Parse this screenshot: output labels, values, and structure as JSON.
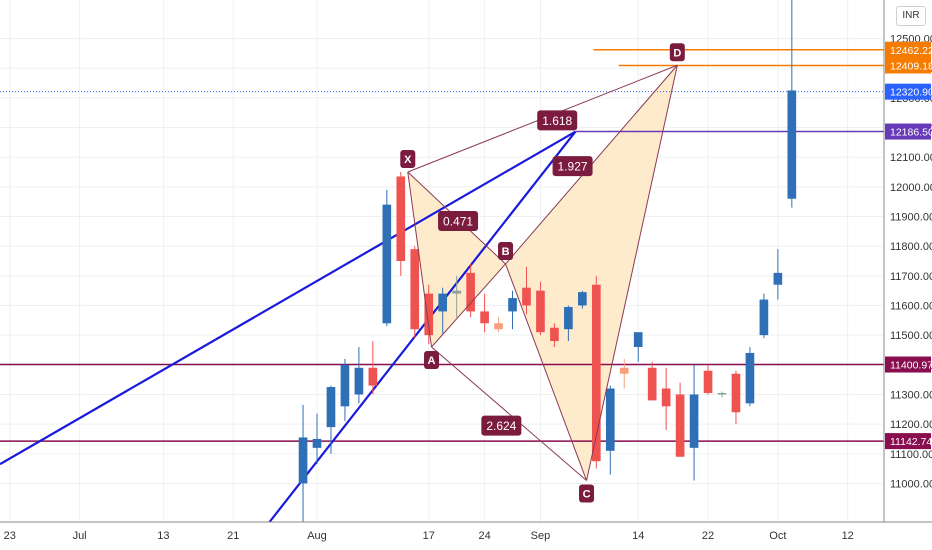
{
  "chart_data": {
    "type": "candlestick",
    "currency": "INR",
    "ylim": [
      10870,
      12630
    ],
    "xlim": [
      -0.7,
      62.6
    ],
    "x_ticks": [
      {
        "label": "23",
        "i": 0
      },
      {
        "label": "Jul",
        "i": 5
      },
      {
        "label": "13",
        "i": 11
      },
      {
        "label": "21",
        "i": 16
      },
      {
        "label": "Aug",
        "i": 22
      },
      {
        "label": "17",
        "i": 30
      },
      {
        "label": "24",
        "i": 34
      },
      {
        "label": "Sep",
        "i": 38
      },
      {
        "label": "14",
        "i": 45
      },
      {
        "label": "22",
        "i": 50
      },
      {
        "label": "Oct",
        "i": 55
      },
      {
        "label": "12",
        "i": 60
      }
    ],
    "y_ticks": [
      "11000.00",
      "11100.00",
      "11200.00",
      "11300.00",
      "11400.00",
      "11500.00",
      "11600.00",
      "11700.00",
      "11800.00",
      "11900.00",
      "12000.00",
      "12100.00",
      "12200.00",
      "12300.00",
      "12400.00",
      "12500.00"
    ],
    "candles": [
      {
        "i": 21,
        "o": 11000,
        "h": 11265,
        "l": 10820,
        "c": 11155
      },
      {
        "i": 22,
        "o": 11120,
        "h": 11235,
        "l": 11065,
        "c": 11150
      },
      {
        "i": 23,
        "o": 11190,
        "h": 11330,
        "l": 11100,
        "c": 11325
      },
      {
        "i": 24,
        "o": 11260,
        "h": 11420,
        "l": 11210,
        "c": 11400
      },
      {
        "i": 25,
        "o": 11300,
        "h": 11460,
        "l": 11270,
        "c": 11390
      },
      {
        "i": 26,
        "o": 11390,
        "h": 11480,
        "l": 11300,
        "c": 11330
      },
      {
        "i": 27,
        "o": 11540,
        "h": 11990,
        "l": 11530,
        "c": 11940
      },
      {
        "i": 28,
        "o": 12035,
        "h": 12050,
        "l": 11700,
        "c": 11750
      },
      {
        "i": 29,
        "o": 11790,
        "h": 11800,
        "l": 11490,
        "c": 11520
      },
      {
        "i": 30,
        "o": 11640,
        "h": 11670,
        "l": 11470,
        "c": 11500
      },
      {
        "i": 31,
        "o": 11580,
        "h": 11660,
        "l": 11505,
        "c": 11640
      },
      {
        "i": 32,
        "o": 11640,
        "h": 11700,
        "l": 11560,
        "c": 11650
      },
      {
        "i": 33,
        "o": 11710,
        "h": 11740,
        "l": 11560,
        "c": 11580
      },
      {
        "i": 34,
        "o": 11580,
        "h": 11640,
        "l": 11510,
        "c": 11540
      },
      {
        "i": 35,
        "o": 11540,
        "h": 11560,
        "l": 11510,
        "c": 11520
      },
      {
        "i": 36,
        "o": 11580,
        "h": 11650,
        "l": 11520,
        "c": 11625
      },
      {
        "i": 37,
        "o": 11660,
        "h": 11730,
        "l": 11570,
        "c": 11600
      },
      {
        "i": 38,
        "o": 11650,
        "h": 11680,
        "l": 11500,
        "c": 11510
      },
      {
        "i": 39,
        "o": 11525,
        "h": 11540,
        "l": 11460,
        "c": 11480
      },
      {
        "i": 40,
        "o": 11520,
        "h": 11600,
        "l": 11480,
        "c": 11595
      },
      {
        "i": 41,
        "o": 11600,
        "h": 11650,
        "l": 11590,
        "c": 11645
      },
      {
        "i": 42,
        "o": 11670,
        "h": 11700,
        "l": 11050,
        "c": 11075
      },
      {
        "i": 43,
        "o": 11110,
        "h": 11330,
        "l": 11030,
        "c": 11320
      },
      {
        "i": 44,
        "o": 11390,
        "h": 11420,
        "l": 11320,
        "c": 11370
      },
      {
        "i": 45,
        "o": 11460,
        "h": 11500,
        "l": 11410,
        "c": 11510
      },
      {
        "i": 46,
        "o": 11390,
        "h": 11410,
        "l": 11290,
        "c": 11280
      },
      {
        "i": 47,
        "o": 11320,
        "h": 11390,
        "l": 11180,
        "c": 11260
      },
      {
        "i": 48,
        "o": 11300,
        "h": 11340,
        "l": 11090,
        "c": 11090
      },
      {
        "i": 49,
        "o": 11120,
        "h": 11400,
        "l": 11010,
        "c": 11300
      },
      {
        "i": 50,
        "o": 11380,
        "h": 11400,
        "l": 11300,
        "c": 11305
      },
      {
        "i": 51,
        "o": 11300,
        "h": 11310,
        "l": 11290,
        "c": 11305
      },
      {
        "i": 52,
        "o": 11370,
        "h": 11380,
        "l": 11200,
        "c": 11240
      },
      {
        "i": 53,
        "o": 11270,
        "h": 11460,
        "l": 11260,
        "c": 11440
      },
      {
        "i": 54,
        "o": 11500,
        "h": 11640,
        "l": 11490,
        "c": 11620
      },
      {
        "i": 55,
        "o": 11670,
        "h": 11790,
        "l": 11620,
        "c": 11710
      },
      {
        "i": 56,
        "o": 11960,
        "h": 12630,
        "l": 11930,
        "c": 12325
      }
    ],
    "levels": [
      {
        "name": "resistance-1",
        "value": 11400.97,
        "label": "11400.97",
        "color": "#880e4f"
      },
      {
        "name": "support-1",
        "value": 11142.74,
        "label": "11142.74",
        "color": "#880e4f"
      },
      {
        "name": "level-purple",
        "value": 12186.5,
        "label": "12186.50",
        "color": "#673ab7"
      },
      {
        "name": "level-orange-1",
        "value": 12409.18,
        "label": "12409.18",
        "color": "#f57c00"
      },
      {
        "name": "level-orange-2",
        "value": 12462.22,
        "label": "12462.22",
        "color": "#f57c00"
      },
      {
        "name": "last-price",
        "value": 12320.9,
        "label": "12320.90",
        "color": "#2962ff"
      }
    ],
    "pattern_points": [
      {
        "label": "X",
        "i": 28.5,
        "price": 12050
      },
      {
        "label": "A",
        "i": 30.2,
        "price": 11460
      },
      {
        "label": "B",
        "i": 35.5,
        "price": 11740
      },
      {
        "label": "C",
        "i": 41.3,
        "price": 11010
      },
      {
        "label": "D",
        "i": 47.8,
        "price": 12410
      }
    ],
    "ratios": [
      {
        "text": "1.618",
        "i": 39.2,
        "price": 12224
      },
      {
        "text": "0.471",
        "i": 32.1,
        "price": 11885
      },
      {
        "text": "1.927",
        "i": 40.3,
        "price": 12070
      },
      {
        "text": "2.624",
        "i": 35.2,
        "price": 11195
      }
    ],
    "trendlines": [
      {
        "from": {
          "i": -0.7,
          "price": 11065
        },
        "to": {
          "i": 40.5,
          "price": 12186
        }
      },
      {
        "from": {
          "i": 18.6,
          "price": 10870
        },
        "to": {
          "i": 40.5,
          "price": 12186
        }
      }
    ],
    "colors": {
      "up": "#2f6fb5",
      "down": "#ef5350",
      "down_light": "#f79f7c",
      "neutral": "#8aa39b",
      "pattern_line": "#8b3a55",
      "pattern_fill": "#fde7c3",
      "trend": "#1a1adc"
    }
  }
}
